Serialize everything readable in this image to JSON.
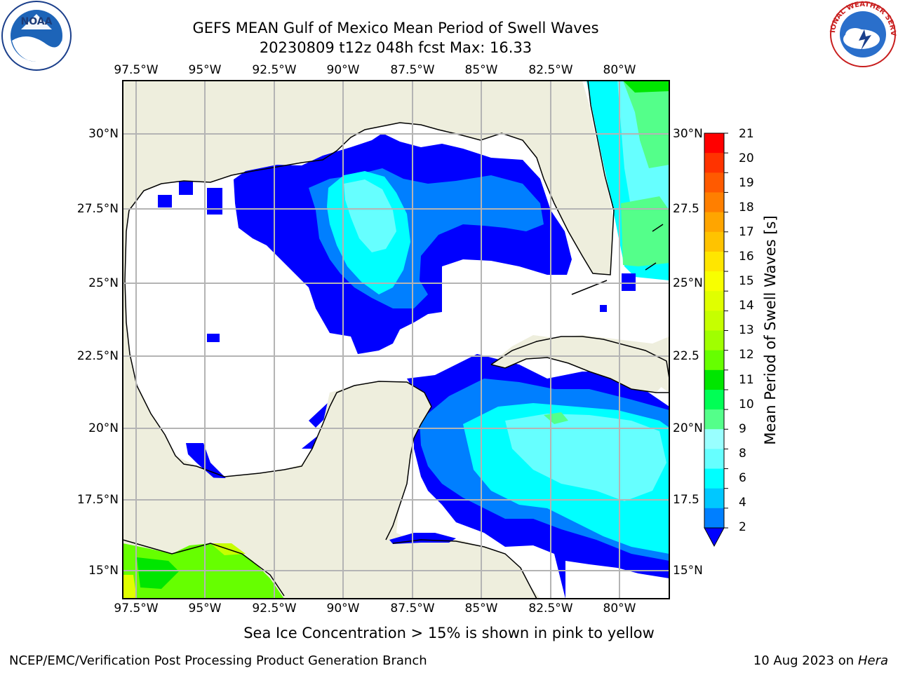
{
  "title": {
    "line1": "GEFS MEAN Gulf of Mexico Mean Period of Swell Waves",
    "line2": "20230809 t12z 048h fcst   Max: 16.33"
  },
  "logos": {
    "left": {
      "name": "noara-logo",
      "icon": "noaa-seal",
      "text": "NOAA"
    },
    "right": {
      "name": "nws-logo",
      "icon": "nws-seal",
      "text": "NATIONAL WEATHER SERVICE"
    }
  },
  "map": {
    "lon_labels": [
      "97.5°W",
      "95°W",
      "92.5°W",
      "90°W",
      "87.5°W",
      "85°W",
      "82.5°W",
      "80°W"
    ],
    "lat_labels": [
      "30°N",
      "27.5°N",
      "25°N",
      "22.5°N",
      "20°N",
      "17.5°N",
      "15°N"
    ],
    "lat_labels_right": [
      "30°N",
      "27.5",
      "25°N",
      "22.5",
      "20°N",
      "17.5",
      "15°N"
    ],
    "colors": {
      "land": "#eeeedd",
      "ocean_none": "#ffffff",
      "grid": "#b4b4b4",
      "coast": "#000000"
    }
  },
  "colorbar": {
    "label": "Mean Period of Swell Waves [s]",
    "ticks": [
      "21",
      "20",
      "19",
      "18",
      "17",
      "16",
      "15",
      "14",
      "13",
      "12",
      "11",
      "10",
      "9",
      "8",
      "6",
      "4",
      "2"
    ],
    "colors": [
      "#ff0000",
      "#ff3300",
      "#ff5a00",
      "#ff7f00",
      "#ffa500",
      "#ffc300",
      "#ffe600",
      "#f8ff00",
      "#e0ff00",
      "#c6ff00",
      "#a0ff00",
      "#66ff00",
      "#00e600",
      "#00ff55",
      "#54ff8a",
      "#99ffff",
      "#66ffff",
      "#00ffff",
      "#00c8ff",
      "#007fff",
      "#0000ff"
    ]
  },
  "notes": {
    "sea_ice": "Sea Ice Concentration > 15% is shown in pink to yellow",
    "credit": "NCEP/EMC/Verification Post Processing Product Generation Branch",
    "date": "10 Aug 2023 on",
    "machine": "Hera"
  }
}
